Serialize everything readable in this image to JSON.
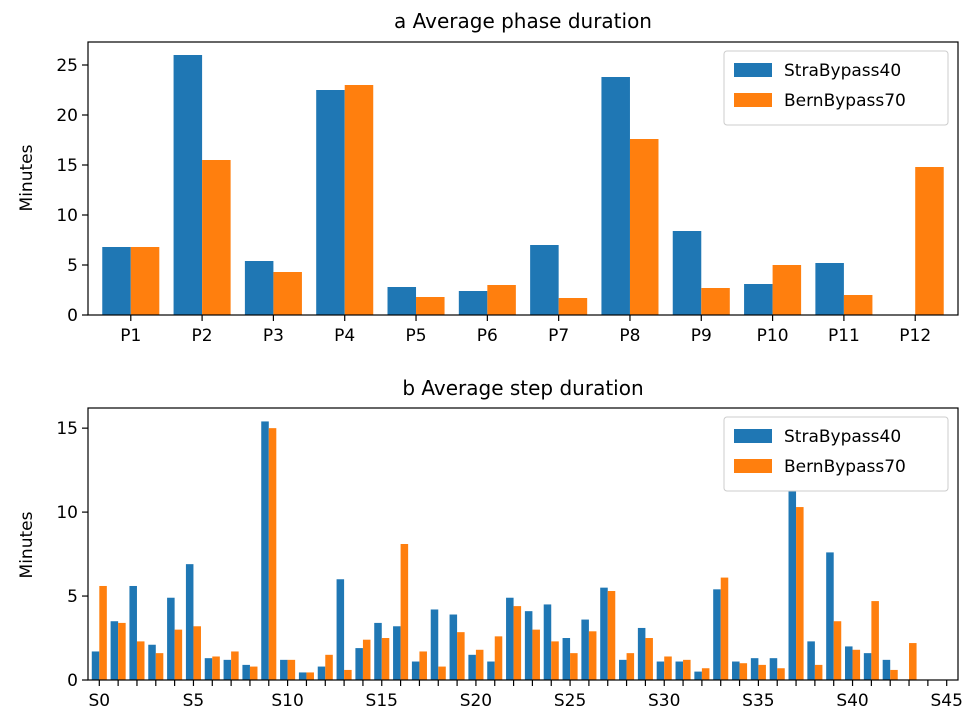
{
  "colors": {
    "s1": "#1f77b4",
    "s2": "#ff7f0e"
  },
  "chart_data": [
    {
      "type": "bar",
      "title": "a Average phase duration",
      "ylabel": "Minutes",
      "ylim": [
        0,
        27.3
      ],
      "yticks": [
        0,
        5,
        10,
        15,
        20,
        25
      ],
      "categories": [
        "P1",
        "P2",
        "P3",
        "P4",
        "P5",
        "P6",
        "P7",
        "P8",
        "P9",
        "P10",
        "P11",
        "P12"
      ],
      "legend_position": "top-right",
      "series": [
        {
          "name": "StraBypass40",
          "values": [
            6.8,
            26.0,
            5.4,
            22.5,
            2.8,
            2.4,
            7.0,
            23.8,
            8.4,
            3.1,
            5.2,
            0
          ]
        },
        {
          "name": "BernBypass70",
          "values": [
            6.8,
            15.5,
            4.3,
            23.0,
            1.8,
            3.0,
            1.7,
            17.6,
            2.7,
            5.0,
            2.0,
            14.8
          ]
        }
      ]
    },
    {
      "type": "bar",
      "title": "b Average step duration",
      "ylabel": "Minutes",
      "ylim": [
        0,
        16.2
      ],
      "yticks": [
        0,
        5,
        10,
        15
      ],
      "categories": [
        "S0",
        "S1",
        "S2",
        "S3",
        "S4",
        "S5",
        "S6",
        "S7",
        "S8",
        "S9",
        "S10",
        "S11",
        "S12",
        "S13",
        "S14",
        "S15",
        "S16",
        "S17",
        "S18",
        "S19",
        "S20",
        "S21",
        "S22",
        "S23",
        "S24",
        "S25",
        "S26",
        "S27",
        "S28",
        "S29",
        "S30",
        "S31",
        "S32",
        "S33",
        "S34",
        "S35",
        "S36",
        "S37",
        "S38",
        "S39",
        "S40",
        "S41",
        "S42",
        "S43",
        "S44",
        "S45"
      ],
      "xtick_labels": [
        "S0",
        "S5",
        "S10",
        "S15",
        "S20",
        "S25",
        "S30",
        "S35",
        "S40",
        "S45"
      ],
      "xtick_indices": [
        0,
        5,
        10,
        15,
        20,
        25,
        30,
        35,
        40,
        45
      ],
      "legend_position": "top-right",
      "series": [
        {
          "name": "StraBypass40",
          "values": [
            1.7,
            3.5,
            5.6,
            2.1,
            4.9,
            6.9,
            1.3,
            1.2,
            0.9,
            15.4,
            1.2,
            0.45,
            0.8,
            6.0,
            1.9,
            3.4,
            3.2,
            1.1,
            4.2,
            3.9,
            1.5,
            1.1,
            4.9,
            4.1,
            4.5,
            2.5,
            3.6,
            5.5,
            1.2,
            3.1,
            1.1,
            1.1,
            0.5,
            5.4,
            1.1,
            1.3,
            1.3,
            15.4,
            2.3,
            7.6,
            2.0,
            1.6,
            1.2,
            0,
            0,
            0
          ]
        },
        {
          "name": "BernBypass70",
          "values": [
            5.6,
            3.4,
            2.3,
            1.6,
            3.0,
            3.2,
            1.4,
            1.7,
            0.8,
            15.0,
            1.2,
            0.45,
            1.5,
            0.6,
            2.4,
            2.5,
            8.1,
            1.7,
            0.8,
            2.85,
            1.8,
            2.6,
            4.4,
            3.0,
            2.3,
            1.6,
            2.9,
            5.3,
            1.6,
            2.5,
            1.4,
            1.2,
            0.7,
            6.1,
            1.0,
            0.9,
            0.7,
            10.3,
            0.9,
            3.5,
            1.8,
            4.7,
            0.6,
            2.2,
            0,
            0
          ]
        }
      ]
    }
  ]
}
